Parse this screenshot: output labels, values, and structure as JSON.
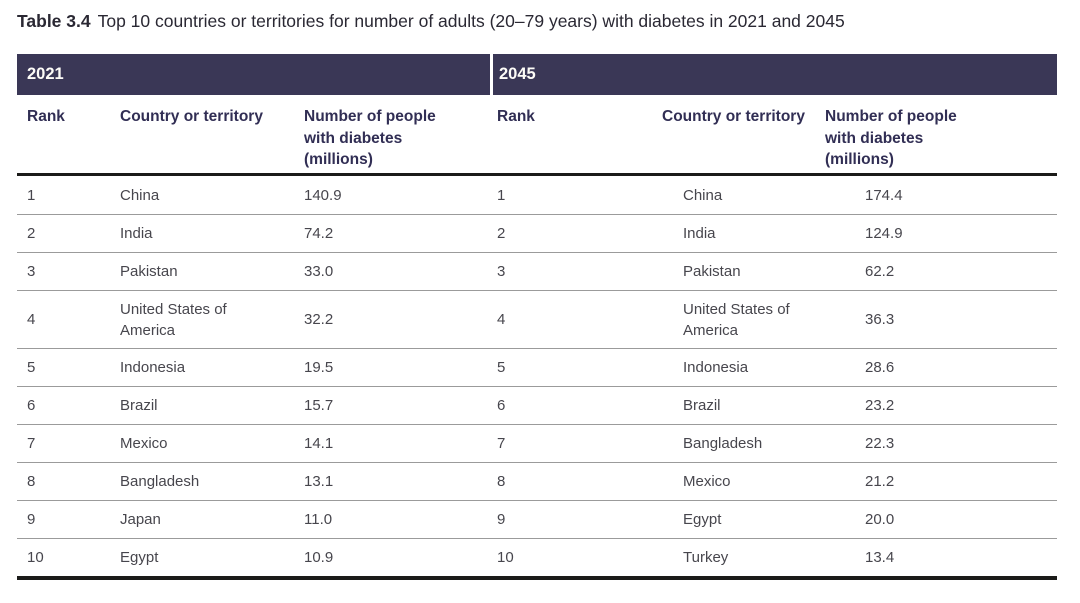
{
  "title": {
    "number": "Table 3.4",
    "caption": "Top 10 countries or territories for number of adults (20–79 years) with diabetes in 2021 and 2045"
  },
  "sections": [
    {
      "year": "2021",
      "col_rank": "Rank",
      "col_country": "Country or territory",
      "col_number": "Number of people\nwith diabetes\n(millions)"
    },
    {
      "year": "2045",
      "col_rank": "Rank",
      "col_country": "Country or territory",
      "col_number": "Number of people\nwith diabetes\n(millions)"
    }
  ],
  "rows": [
    {
      "l_rank": "1",
      "l_country": "China",
      "l_value": "140.9",
      "r_rank": "1",
      "r_country": "China",
      "r_value": "174.4"
    },
    {
      "l_rank": "2",
      "l_country": "India",
      "l_value": "74.2",
      "r_rank": "2",
      "r_country": "India",
      "r_value": "124.9"
    },
    {
      "l_rank": "3",
      "l_country": "Pakistan",
      "l_value": "33.0",
      "r_rank": "3",
      "r_country": "Pakistan",
      "r_value": "62.2"
    },
    {
      "l_rank": "4",
      "l_country": "United States of\nAmerica",
      "l_value": "32.2",
      "r_rank": "4",
      "r_country": "United States of\nAmerica",
      "r_value": "36.3"
    },
    {
      "l_rank": "5",
      "l_country": "Indonesia",
      "l_value": "19.5",
      "r_rank": "5",
      "r_country": "Indonesia",
      "r_value": "28.6"
    },
    {
      "l_rank": "6",
      "l_country": "Brazil",
      "l_value": "15.7",
      "r_rank": "6",
      "r_country": "Brazil",
      "r_value": "23.2"
    },
    {
      "l_rank": "7",
      "l_country": "Mexico",
      "l_value": "14.1",
      "r_rank": "7",
      "r_country": "Bangladesh",
      "r_value": "22.3"
    },
    {
      "l_rank": "8",
      "l_country": "Bangladesh",
      "l_value": "13.1",
      "r_rank": "8",
      "r_country": "Mexico",
      "r_value": "21.2"
    },
    {
      "l_rank": "9",
      "l_country": "Japan",
      "l_value": "11.0",
      "r_rank": "9",
      "r_country": "Egypt",
      "r_value": "20.0"
    },
    {
      "l_rank": "10",
      "l_country": "Egypt",
      "l_value": "10.9",
      "r_rank": "10",
      "r_country": "Turkey",
      "r_value": "13.4"
    }
  ],
  "colors": {
    "band_bg": "#3a3756",
    "band_text": "#fdfcf8",
    "header_text": "#312e54",
    "body_text": "#47464d",
    "divider": "#9b9b9b",
    "rule": "#1b1b19"
  },
  "chart_data": {
    "type": "table",
    "title": "Table 3.4 Top 10 countries or territories for number of adults (20–79 years) with diabetes in 2021 and 2045",
    "columns": [
      "Rank",
      "Country or territory",
      "Number of people with diabetes (millions)"
    ],
    "series": [
      {
        "name": "2021",
        "rows": [
          [
            1,
            "China",
            140.9
          ],
          [
            2,
            "India",
            74.2
          ],
          [
            3,
            "Pakistan",
            33.0
          ],
          [
            4,
            "United States of America",
            32.2
          ],
          [
            5,
            "Indonesia",
            19.5
          ],
          [
            6,
            "Brazil",
            15.7
          ],
          [
            7,
            "Mexico",
            14.1
          ],
          [
            8,
            "Bangladesh",
            13.1
          ],
          [
            9,
            "Japan",
            11.0
          ],
          [
            10,
            "Egypt",
            10.9
          ]
        ]
      },
      {
        "name": "2045",
        "rows": [
          [
            1,
            "China",
            174.4
          ],
          [
            2,
            "India",
            124.9
          ],
          [
            3,
            "Pakistan",
            62.2
          ],
          [
            4,
            "United States of America",
            36.3
          ],
          [
            5,
            "Indonesia",
            28.6
          ],
          [
            6,
            "Brazil",
            23.2
          ],
          [
            7,
            "Bangladesh",
            22.3
          ],
          [
            8,
            "Mexico",
            21.2
          ],
          [
            9,
            "Egypt",
            20.0
          ],
          [
            10,
            "Turkey",
            13.4
          ]
        ]
      }
    ]
  }
}
